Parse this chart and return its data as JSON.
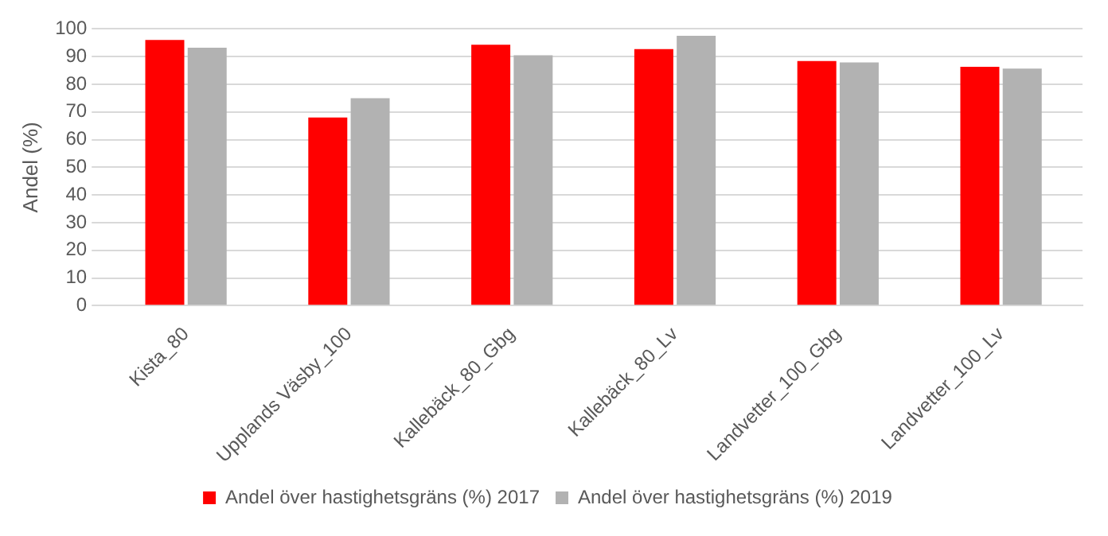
{
  "chart_data": {
    "type": "bar",
    "ylabel": "Andel (%)",
    "categories": [
      "Kista_80",
      "Upplands Väsby_100",
      "Kallebäck_80_Gbg",
      "Kallebäck_80_Lv",
      "Landvetter_100_Gbg",
      "Landvetter_100_Lv"
    ],
    "series": [
      {
        "name": "Andel över hastighetsgräns (%) 2017",
        "color": "#ff0000",
        "values": [
          96,
          68,
          94.3,
          92.7,
          88.4,
          86.3
        ]
      },
      {
        "name": "Andel över hastighetsgräns (%) 2019",
        "color": "#b2b2b2",
        "values": [
          93.2,
          75,
          90.5,
          97.5,
          87.9,
          85.7
        ]
      }
    ],
    "ylim": [
      0,
      100
    ],
    "yticks": [
      0,
      10,
      20,
      30,
      40,
      50,
      60,
      70,
      80,
      90,
      100
    ],
    "grid": "y",
    "legend": "bottom"
  }
}
